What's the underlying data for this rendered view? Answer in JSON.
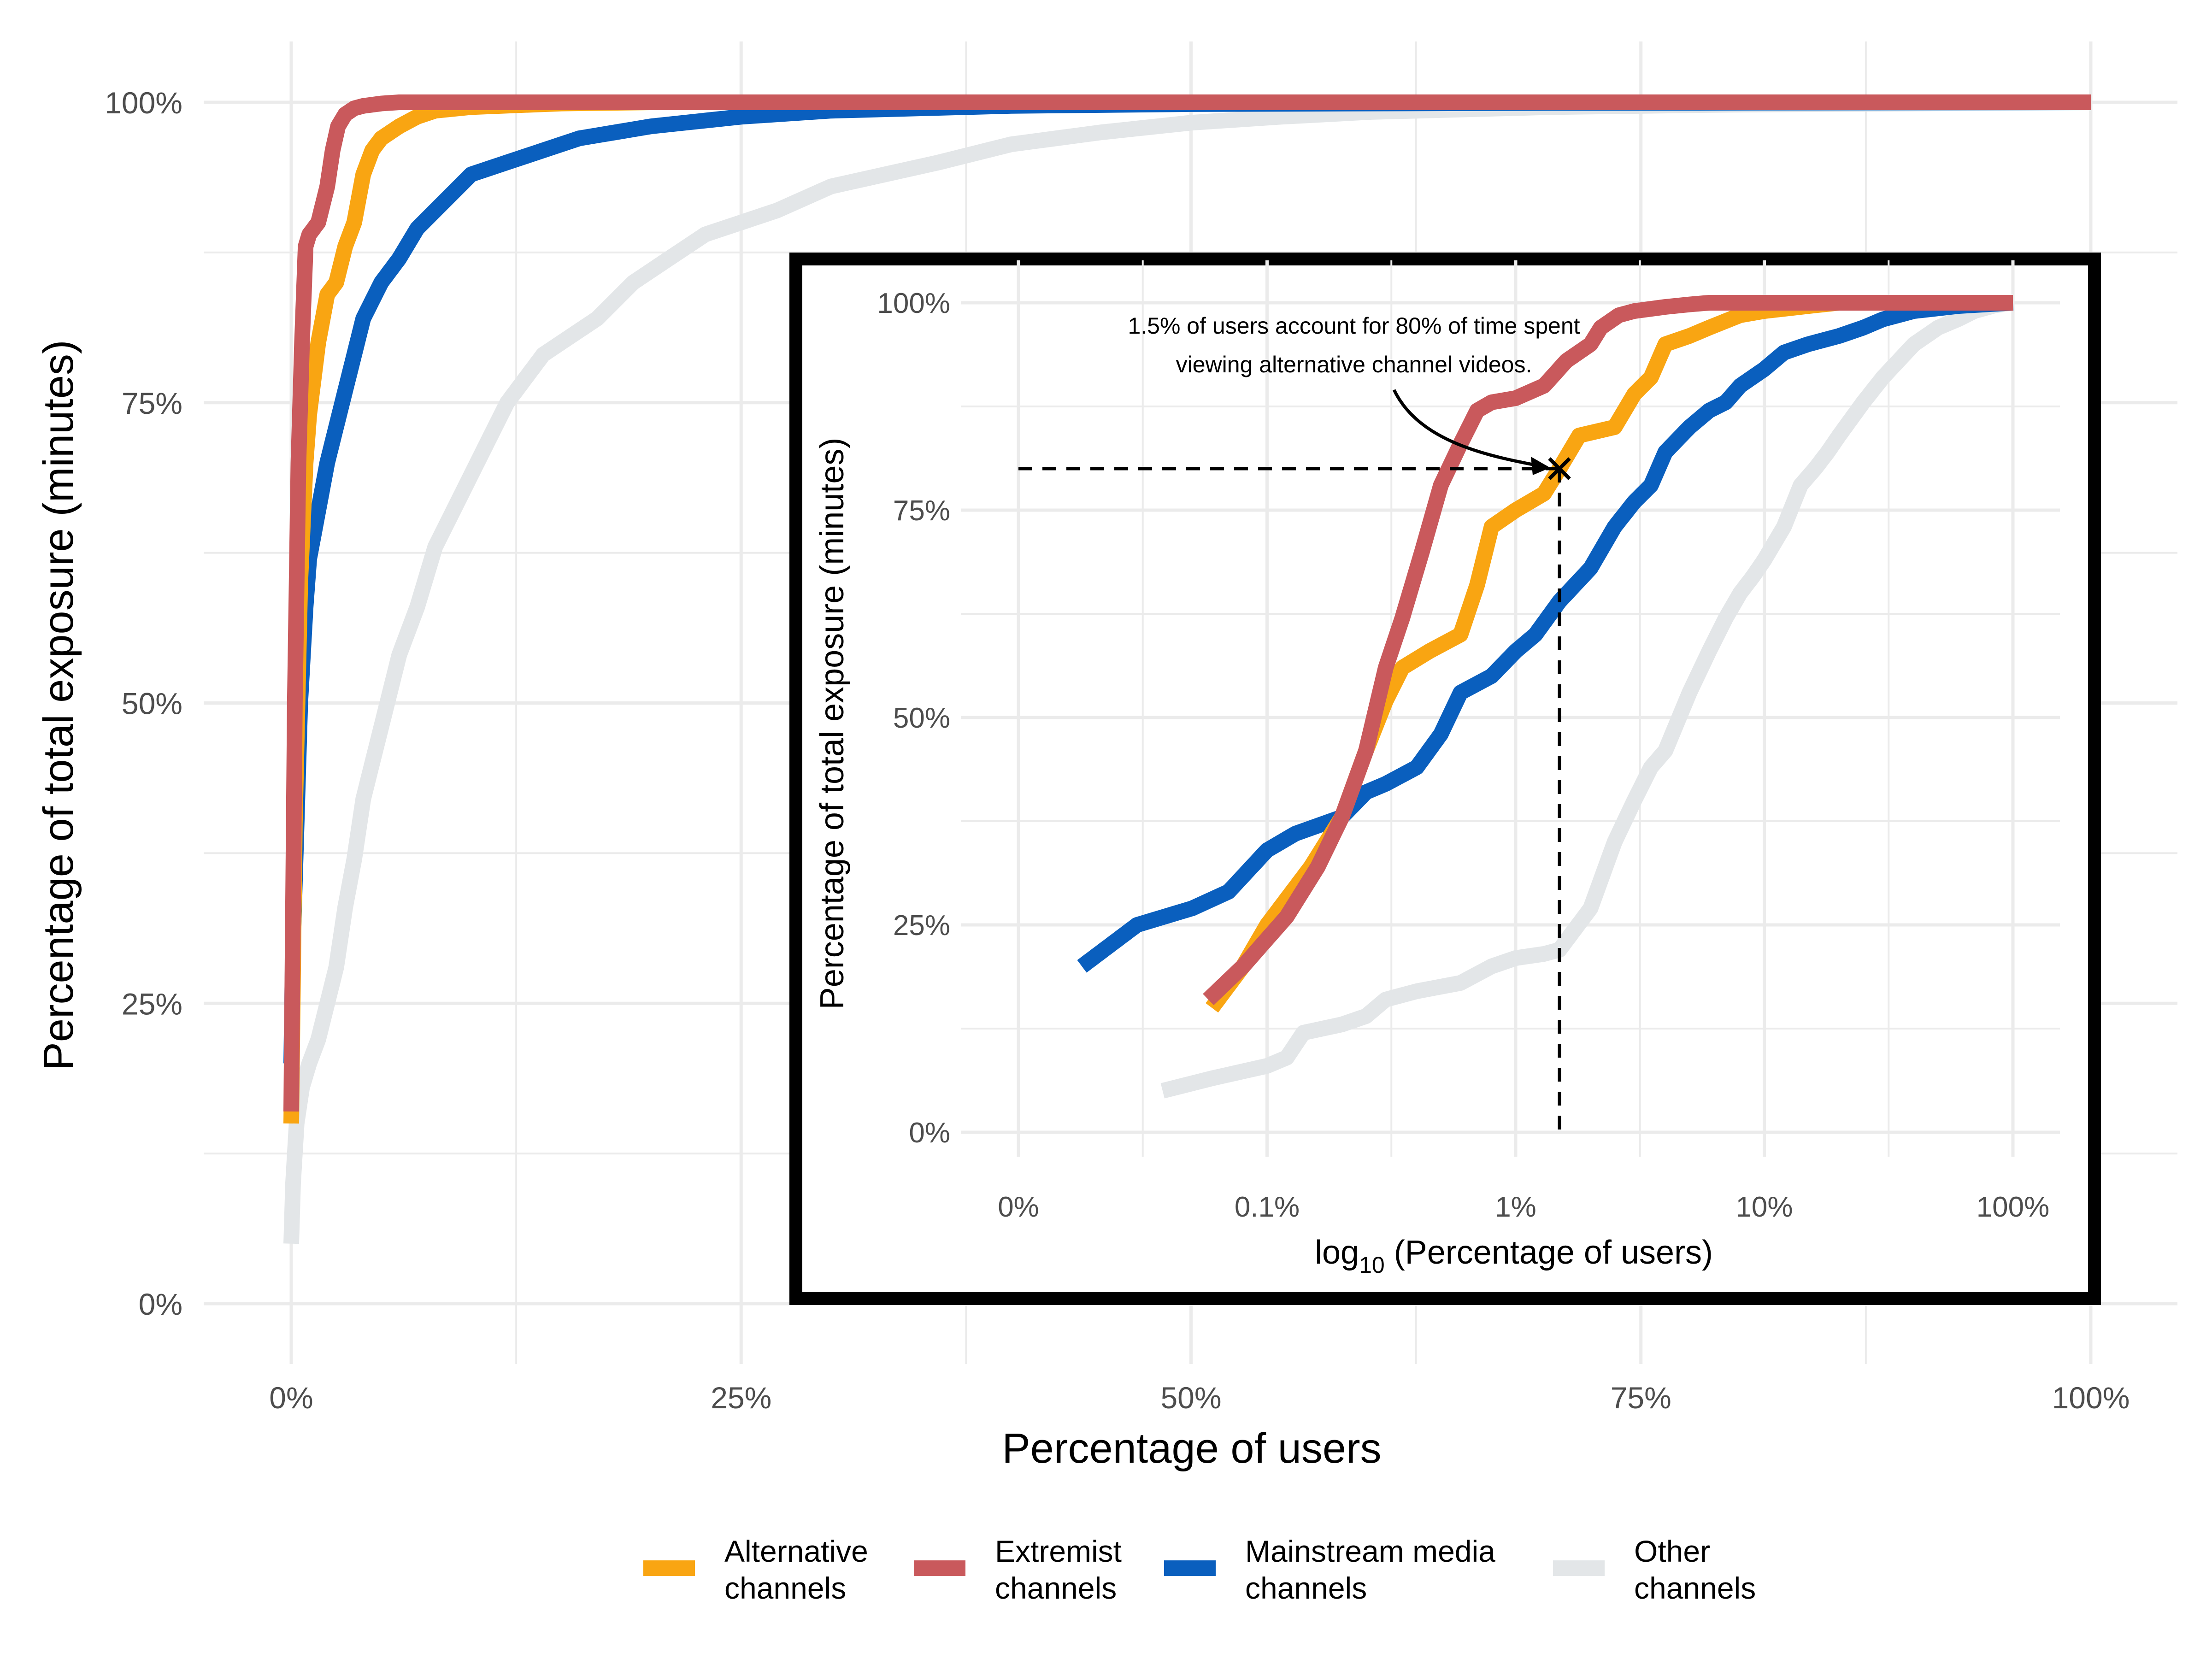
{
  "colors": {
    "alternative": "#F9A512",
    "extremist": "#C9595C",
    "mainstream": "#0A5FBE",
    "other": "#E3E6E8",
    "grid": "#EBEBEB",
    "axis_text": "#4D4D4D",
    "inset_border": "#000000"
  },
  "legend": {
    "items": [
      {
        "key": "alternative",
        "line1": "Alternative",
        "line2": "channels"
      },
      {
        "key": "extremist",
        "line1": "Extremist",
        "line2": "channels"
      },
      {
        "key": "mainstream",
        "line1": "Mainstream media",
        "line2": "channels"
      },
      {
        "key": "other",
        "line1": "Other",
        "line2": "channels"
      }
    ]
  },
  "chart_data": [
    {
      "id": "main",
      "type": "line",
      "title": "",
      "xlabel": "Percentage of users",
      "ylabel": "Percentage of total exposure (minutes)",
      "xlim": [
        0,
        100
      ],
      "ylim": [
        0,
        100
      ],
      "x_ticks": [
        0,
        25,
        50,
        75,
        100
      ],
      "x_tick_labels": [
        "0%",
        "25%",
        "50%",
        "75%",
        "100%"
      ],
      "y_ticks": [
        0,
        25,
        50,
        75,
        100
      ],
      "y_tick_labels": [
        "0%",
        "25%",
        "50%",
        "75%",
        "100%"
      ],
      "grid": true,
      "series": [
        {
          "key": "other",
          "name": "Other channels",
          "points": [
            [
              0,
              5
            ],
            [
              0.1,
              10
            ],
            [
              0.3,
              15
            ],
            [
              0.6,
              18
            ],
            [
              1,
              20
            ],
            [
              1.5,
              22
            ],
            [
              2,
              25
            ],
            [
              2.5,
              28
            ],
            [
              3,
              33
            ],
            [
              3.5,
              37
            ],
            [
              4,
              42
            ],
            [
              4.5,
              45
            ],
            [
              5,
              48
            ],
            [
              6,
              54
            ],
            [
              7,
              58
            ],
            [
              8,
              63
            ],
            [
              9,
              66
            ],
            [
              10,
              69
            ],
            [
              11,
              72
            ],
            [
              12,
              75
            ],
            [
              13,
              77
            ],
            [
              14,
              79
            ],
            [
              15,
              80
            ],
            [
              17,
              82
            ],
            [
              19,
              85
            ],
            [
              21,
              87
            ],
            [
              23,
              89
            ],
            [
              25,
              90
            ],
            [
              27,
              91
            ],
            [
              30,
              93
            ],
            [
              33,
              94
            ],
            [
              36,
              95
            ],
            [
              40,
              96.5
            ],
            [
              45,
              97.5
            ],
            [
              50,
              98.3
            ],
            [
              55,
              98.8
            ],
            [
              60,
              99.2
            ],
            [
              70,
              99.6
            ],
            [
              80,
              99.8
            ],
            [
              90,
              99.9
            ],
            [
              100,
              100
            ]
          ]
        },
        {
          "key": "mainstream",
          "points": [
            [
              0,
              20
            ],
            [
              0.1,
              30
            ],
            [
              0.3,
              40
            ],
            [
              0.5,
              50
            ],
            [
              0.8,
              58
            ],
            [
              1,
              62
            ],
            [
              1.5,
              66
            ],
            [
              2,
              70
            ],
            [
              2.5,
              73
            ],
            [
              3,
              76
            ],
            [
              3.5,
              79
            ],
            [
              4,
              82
            ],
            [
              5,
              85
            ],
            [
              6,
              87
            ],
            [
              7,
              89.5
            ],
            [
              8,
              91
            ],
            [
              9,
              92.5
            ],
            [
              10,
              94
            ],
            [
              12,
              95
            ],
            [
              14,
              96
            ],
            [
              16,
              97
            ],
            [
              18,
              97.5
            ],
            [
              20,
              98
            ],
            [
              25,
              98.8
            ],
            [
              30,
              99.3
            ],
            [
              40,
              99.7
            ],
            [
              50,
              99.85
            ],
            [
              70,
              99.95
            ],
            [
              100,
              100
            ]
          ]
        },
        {
          "key": "alternative",
          "points": [
            [
              0,
              15
            ],
            [
              0.2,
              40
            ],
            [
              0.5,
              60
            ],
            [
              0.8,
              70
            ],
            [
              1,
              74
            ],
            [
              1.5,
              80
            ],
            [
              2,
              84
            ],
            [
              2.5,
              85
            ],
            [
              3,
              88
            ],
            [
              3.5,
              90
            ],
            [
              4,
              94
            ],
            [
              4.5,
              96
            ],
            [
              5,
              97
            ],
            [
              6,
              98
            ],
            [
              7,
              98.8
            ],
            [
              8,
              99.3
            ],
            [
              10,
              99.6
            ],
            [
              15,
              99.9
            ],
            [
              20,
              100
            ],
            [
              100,
              100
            ]
          ]
        },
        {
          "key": "extremist",
          "points": [
            [
              0,
              16
            ],
            [
              0.2,
              50
            ],
            [
              0.4,
              70
            ],
            [
              0.6,
              80
            ],
            [
              0.8,
              88
            ],
            [
              1,
              89
            ],
            [
              1.5,
              90
            ],
            [
              2,
              93
            ],
            [
              2.3,
              96
            ],
            [
              2.6,
              98
            ],
            [
              3,
              99
            ],
            [
              3.5,
              99.5
            ],
            [
              4,
              99.7
            ],
            [
              5,
              99.9
            ],
            [
              6,
              100
            ],
            [
              100,
              100
            ]
          ]
        }
      ]
    },
    {
      "id": "inset",
      "type": "line",
      "title": "",
      "xlabel_prefix": "log",
      "xlabel_subscript": "10",
      "xlabel_rest": " (Percentage of users)",
      "ylabel": "Percentage of total exposure (minutes)",
      "x_scale": "log10",
      "xlim": [
        0.01,
        100
      ],
      "ylim": [
        0,
        100
      ],
      "x_ticks": [
        0.01,
        0.1,
        1,
        10,
        100
      ],
      "x_tick_labels": [
        "0%",
        "0.1%",
        "1%",
        "10%",
        "100%"
      ],
      "y_ticks": [
        0,
        25,
        50,
        75,
        100
      ],
      "y_tick_labels": [
        "0%",
        "25%",
        "50%",
        "75%",
        "100%"
      ],
      "grid": true,
      "annotation": {
        "line1": "1.5% of users account for 80% of time spent",
        "line2": "viewing alternative channel videos.",
        "point": [
          1.5,
          80
        ]
      },
      "series": [
        {
          "key": "other",
          "points": [
            [
              0.038,
              5
            ],
            [
              0.06,
              6.5
            ],
            [
              0.1,
              8
            ],
            [
              0.12,
              9
            ],
            [
              0.14,
              12
            ],
            [
              0.2,
              13
            ],
            [
              0.25,
              14
            ],
            [
              0.3,
              16
            ],
            [
              0.4,
              17
            ],
            [
              0.6,
              18
            ],
            [
              0.8,
              20
            ],
            [
              1,
              21
            ],
            [
              1.3,
              21.5
            ],
            [
              1.5,
              22
            ],
            [
              2,
              27
            ],
            [
              2.5,
              35
            ],
            [
              3,
              40
            ],
            [
              3.5,
              44
            ],
            [
              4,
              46
            ],
            [
              5,
              53
            ],
            [
              6,
              58
            ],
            [
              7,
              62
            ],
            [
              8,
              65
            ],
            [
              9,
              67
            ],
            [
              10,
              69
            ],
            [
              12,
              73
            ],
            [
              14,
              78
            ],
            [
              16,
              80
            ],
            [
              18,
              82
            ],
            [
              20,
              84
            ],
            [
              25,
              88
            ],
            [
              30,
              91
            ],
            [
              40,
              95
            ],
            [
              50,
              97
            ],
            [
              60,
              98
            ],
            [
              70,
              99
            ],
            [
              85,
              99.7
            ],
            [
              100,
              100
            ]
          ]
        },
        {
          "key": "mainstream",
          "points": [
            [
              0.018,
              20
            ],
            [
              0.03,
              25
            ],
            [
              0.05,
              27
            ],
            [
              0.07,
              29
            ],
            [
              0.1,
              34
            ],
            [
              0.13,
              36
            ],
            [
              0.2,
              38
            ],
            [
              0.25,
              41
            ],
            [
              0.3,
              42
            ],
            [
              0.4,
              44
            ],
            [
              0.5,
              48
            ],
            [
              0.6,
              53
            ],
            [
              0.8,
              55
            ],
            [
              1,
              58
            ],
            [
              1.2,
              60
            ],
            [
              1.5,
              64
            ],
            [
              2,
              68
            ],
            [
              2.5,
              73
            ],
            [
              3,
              76
            ],
            [
              3.5,
              78
            ],
            [
              4,
              82
            ],
            [
              5,
              85
            ],
            [
              6,
              87
            ],
            [
              7,
              88
            ],
            [
              8,
              90
            ],
            [
              10,
              92
            ],
            [
              12,
              94
            ],
            [
              15,
              95
            ],
            [
              20,
              96
            ],
            [
              25,
              97
            ],
            [
              30,
              98
            ],
            [
              40,
              99
            ],
            [
              60,
              99.6
            ],
            [
              100,
              100
            ]
          ]
        },
        {
          "key": "alternative",
          "points": [
            [
              0.06,
              15
            ],
            [
              0.08,
              20
            ],
            [
              0.1,
              25
            ],
            [
              0.15,
              32
            ],
            [
              0.2,
              38
            ],
            [
              0.25,
              46
            ],
            [
              0.3,
              52
            ],
            [
              0.35,
              56
            ],
            [
              0.45,
              58
            ],
            [
              0.6,
              60
            ],
            [
              0.7,
              66
            ],
            [
              0.8,
              73
            ],
            [
              1,
              75
            ],
            [
              1.3,
              77
            ],
            [
              1.5,
              80
            ],
            [
              1.8,
              84
            ],
            [
              2.5,
              85
            ],
            [
              3,
              89
            ],
            [
              3.5,
              91
            ],
            [
              4,
              95
            ],
            [
              5,
              96
            ],
            [
              6,
              97
            ],
            [
              8,
              98.5
            ],
            [
              10,
              99
            ],
            [
              15,
              99.6
            ],
            [
              20,
              100
            ],
            [
              100,
              100
            ]
          ]
        },
        {
          "key": "extremist",
          "points": [
            [
              0.058,
              16
            ],
            [
              0.08,
              20
            ],
            [
              0.12,
              26
            ],
            [
              0.16,
              32
            ],
            [
              0.2,
              38
            ],
            [
              0.25,
              46
            ],
            [
              0.3,
              56
            ],
            [
              0.35,
              62
            ],
            [
              0.42,
              70
            ],
            [
              0.5,
              78
            ],
            [
              0.6,
              83
            ],
            [
              0.7,
              87
            ],
            [
              0.8,
              88
            ],
            [
              1,
              88.5
            ],
            [
              1.3,
              90
            ],
            [
              1.6,
              93
            ],
            [
              2,
              95
            ],
            [
              2.2,
              97
            ],
            [
              2.6,
              98.5
            ],
            [
              3,
              99
            ],
            [
              4,
              99.5
            ],
            [
              5,
              99.8
            ],
            [
              6,
              100
            ],
            [
              100,
              100
            ]
          ]
        }
      ]
    }
  ]
}
